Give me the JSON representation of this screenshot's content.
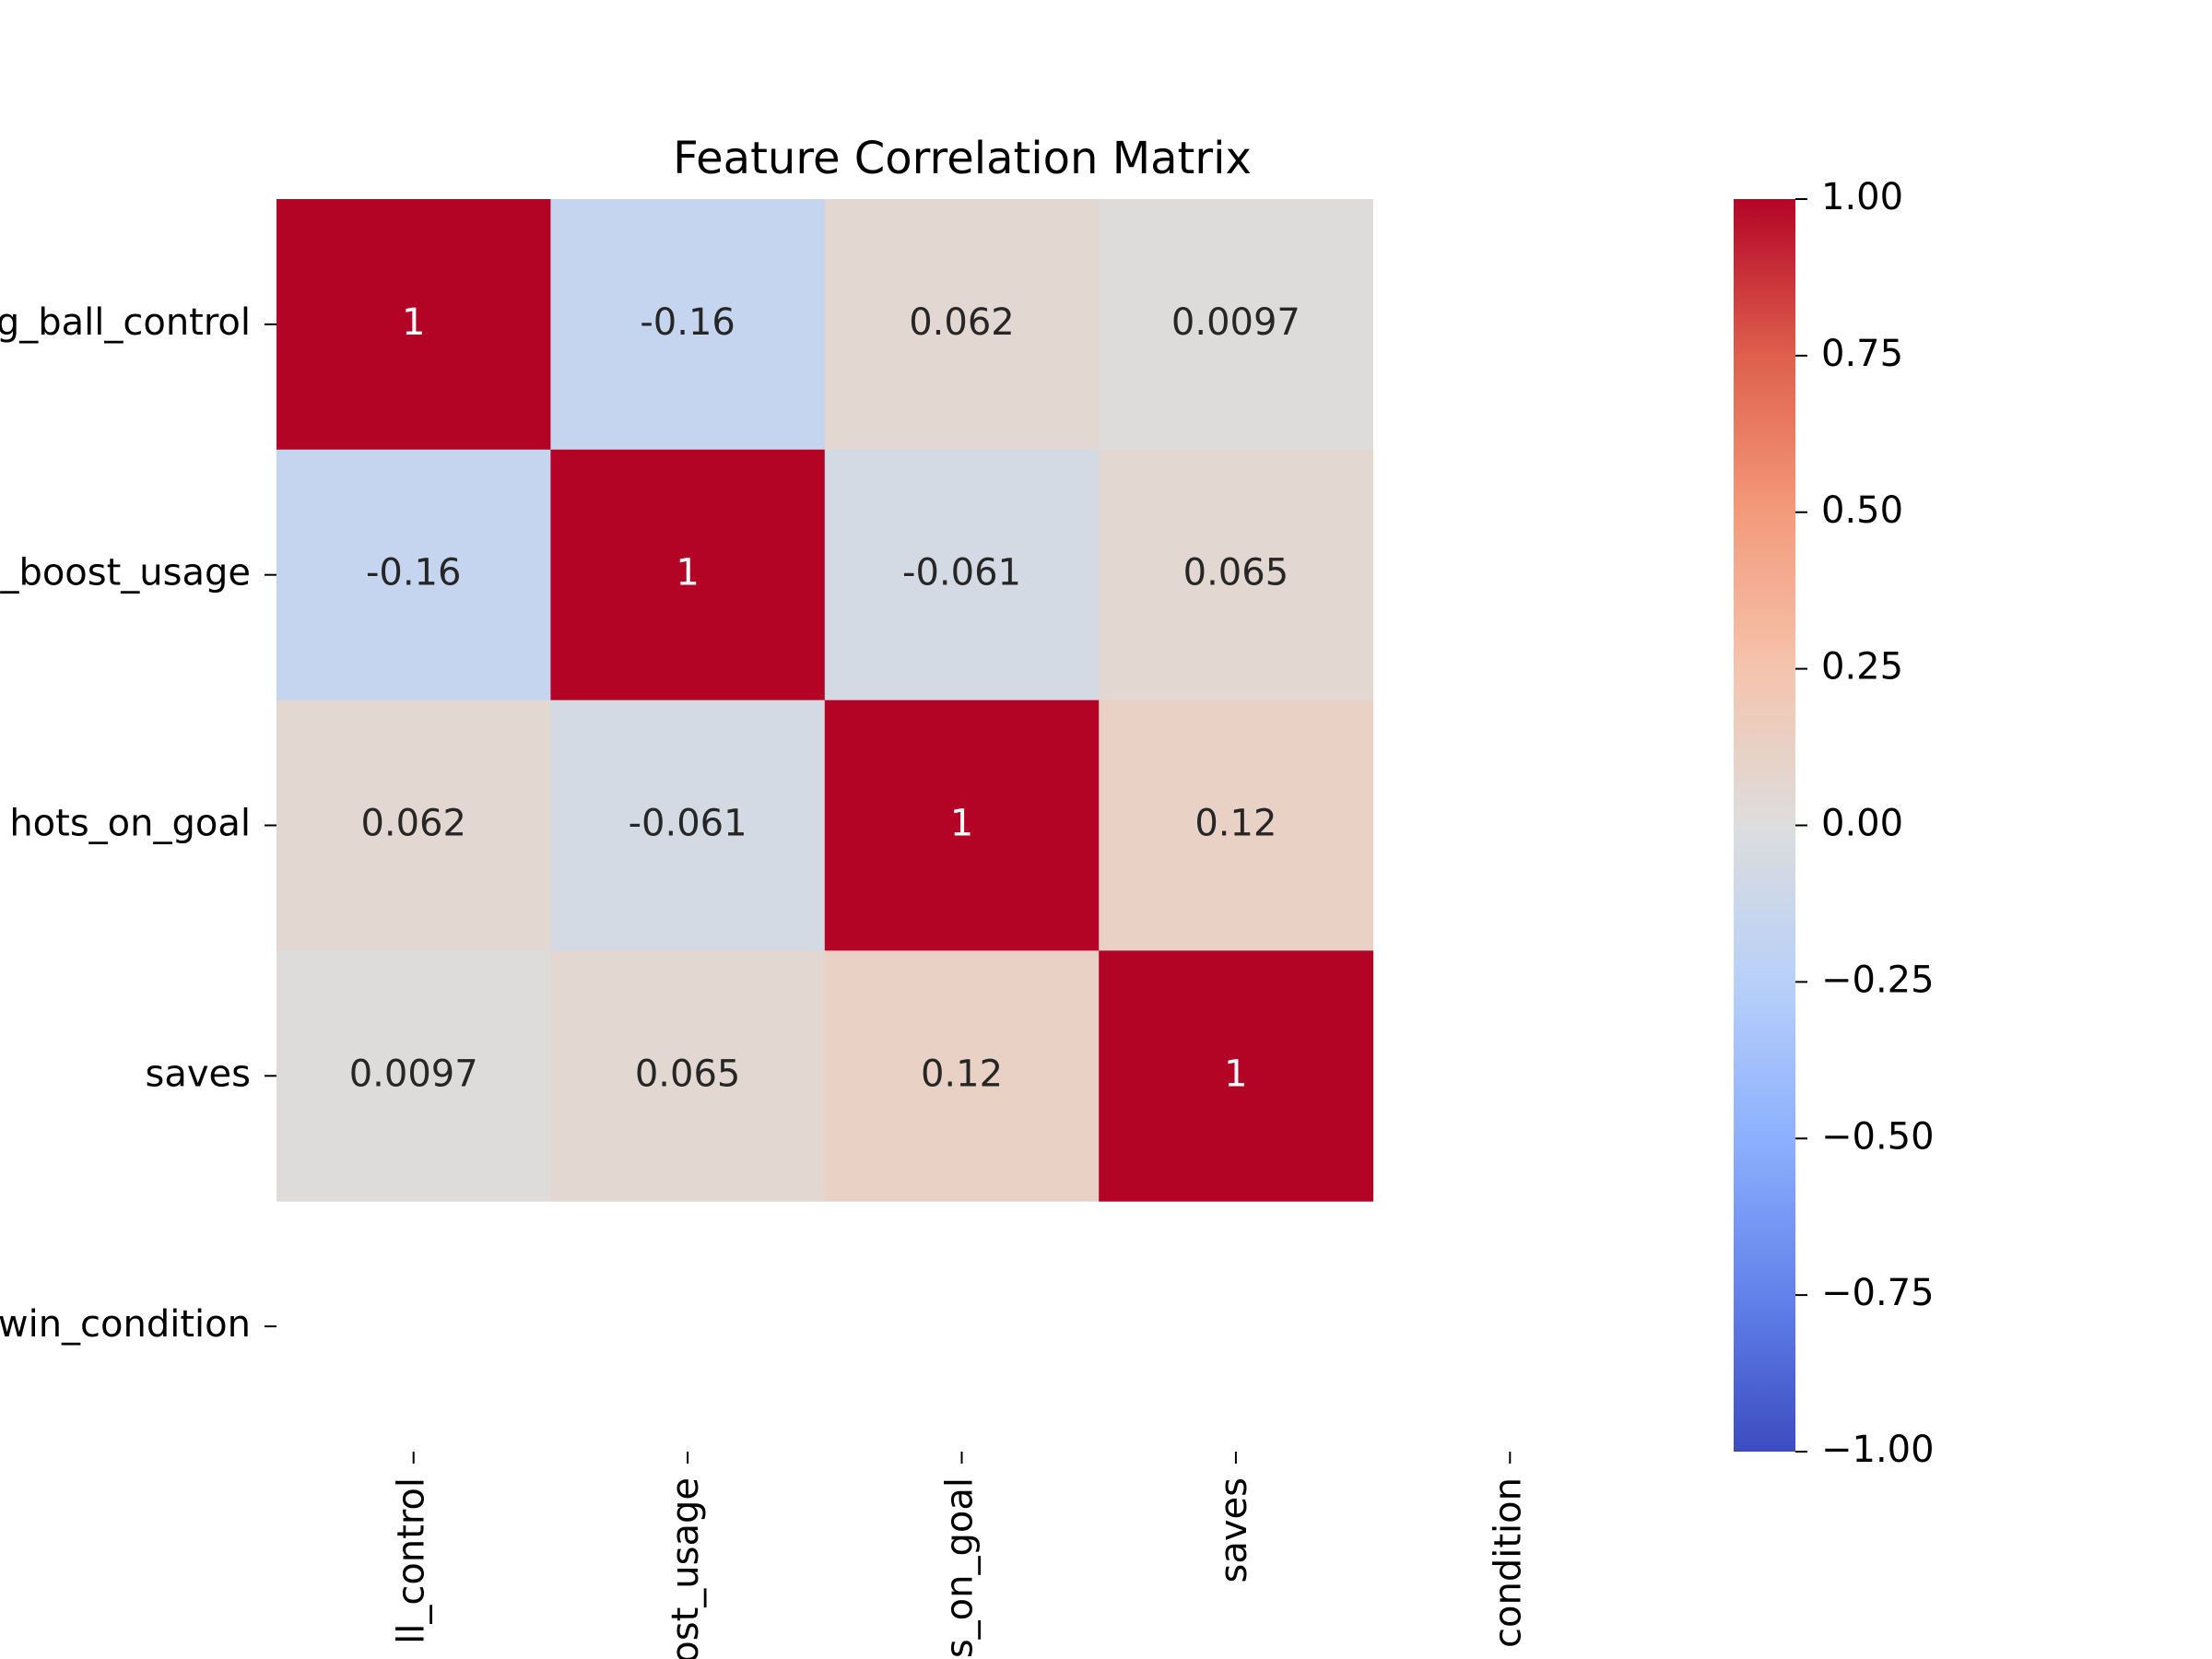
{
  "chart_data": {
    "type": "heatmap",
    "title": "Feature Correlation Matrix",
    "y_categories": [
      "g_ball_control",
      "_boost_usage",
      "hots_on_goal",
      "saves",
      "win_condition"
    ],
    "x_categories": [
      "ll_control",
      "ost_usage",
      "s_on_goal",
      "saves",
      "condition"
    ],
    "values": [
      [
        1,
        -0.16,
        0.062,
        0.0097,
        null
      ],
      [
        -0.16,
        1,
        -0.061,
        0.065,
        null
      ],
      [
        0.062,
        -0.061,
        1,
        0.12,
        null
      ],
      [
        0.0097,
        0.065,
        0.12,
        1,
        null
      ],
      [
        null,
        null,
        null,
        null,
        null
      ]
    ],
    "colormap": "coolwarm",
    "clim": [
      -1,
      1
    ],
    "cticks": [
      {
        "value": 1,
        "label": "1.00"
      },
      {
        "value": 0.75,
        "label": "0.75"
      },
      {
        "value": 0.5,
        "label": "0.50"
      },
      {
        "value": 0.25,
        "label": "0.25"
      },
      {
        "value": 0,
        "label": "0.00"
      },
      {
        "value": -0.25,
        "label": "−0.25"
      },
      {
        "value": -0.5,
        "label": "−0.50"
      },
      {
        "value": -0.75,
        "label": "−0.75"
      },
      {
        "value": -1,
        "label": "−1.00"
      }
    ]
  }
}
